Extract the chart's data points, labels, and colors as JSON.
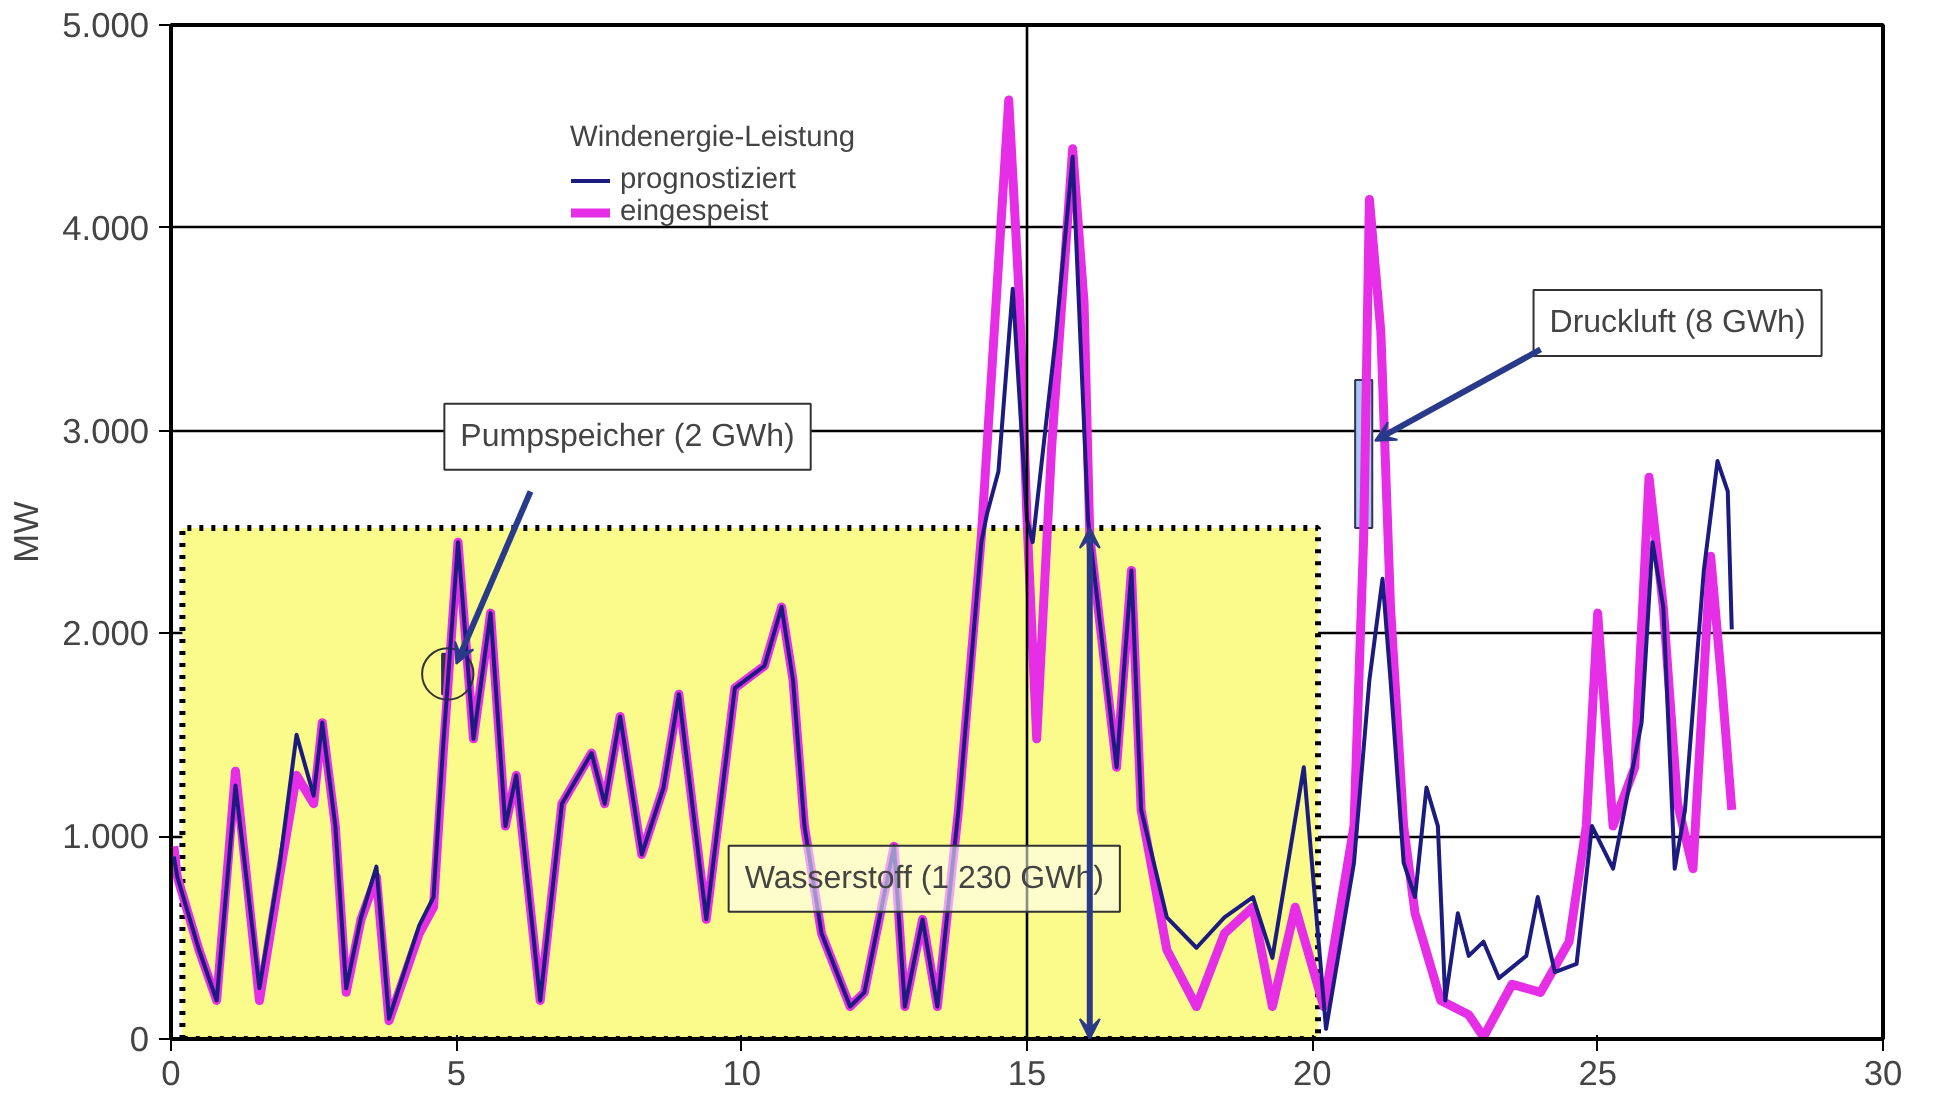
{
  "chart_data": {
    "type": "line",
    "ylabel": "MW",
    "legend_title": "Windenergie-Leistung",
    "legend": "top left",
    "grid": "y",
    "xlim": [
      0,
      30
    ],
    "ylim": [
      0,
      5000
    ],
    "xticks": [
      0,
      5,
      10,
      15,
      20,
      25,
      30
    ],
    "yticks": [
      0,
      {
        "value": 1000,
        "label": "1.000"
      },
      {
        "value": 2000,
        "label": "2.000"
      },
      {
        "value": 3000,
        "label": "3.000"
      },
      {
        "value": 4000,
        "label": "4.000"
      },
      {
        "value": 5000,
        "label": "5.000"
      }
    ],
    "ref_lines": [
      {
        "axis": "x",
        "value": 15,
        "color": "#000000",
        "line_style": "solid"
      }
    ],
    "series": [
      {
        "type": "area",
        "color": "#fbfb8c",
        "line_style": "dotted",
        "x": [
          0.2,
          20.1
        ],
        "values": [
          2520,
          2520
        ]
      },
      {
        "type": "bar",
        "color": "#a8c8f0",
        "x": [
          20.9
        ],
        "values": [
          730
        ],
        "base": [
          2520
        ]
      },
      {
        "type": "bar",
        "color": "#333333",
        "x": [
          4.82
        ],
        "values": [
          200
        ],
        "base": [
          1700
        ]
      },
      {
        "name": "prognostiziert",
        "color": "#1c1c80",
        "x": [
          0.05,
          0.11,
          0.49,
          0.8,
          1.13,
          1.55,
          1.9,
          2.2,
          2.5,
          2.65,
          2.88,
          3.07,
          3.33,
          3.6,
          3.82,
          4.35,
          4.6,
          4.77,
          5.03,
          5.3,
          5.6,
          5.86,
          6.05,
          6.47,
          6.85,
          7.37,
          7.6,
          7.87,
          8.25,
          8.63,
          8.9,
          9.38,
          9.88,
          10.4,
          10.7,
          10.9,
          11.1,
          11.4,
          11.9,
          12.15,
          12.67,
          12.86,
          13.17,
          13.43,
          13.8,
          14.2,
          14.3,
          14.5,
          14.75,
          15.0,
          15.1,
          15.5,
          15.8,
          16.07,
          16.57,
          16.83,
          17.0,
          17.45,
          17.97,
          18.46,
          18.96,
          19.3,
          19.85,
          20.24,
          20.73,
          21.0,
          21.23,
          21.37,
          21.6,
          21.8,
          22.0,
          22.2,
          22.33,
          22.55,
          22.74,
          23.0,
          23.27,
          23.75,
          23.95,
          24.25,
          24.63,
          24.9,
          25.27,
          25.77,
          25.96,
          26.15,
          26.35,
          26.53,
          26.86,
          27.1,
          27.28,
          27.35
        ],
        "values": [
          900,
          800,
          440,
          190,
          1250,
          250,
          850,
          1500,
          1200,
          1560,
          1050,
          250,
          600,
          850,
          100,
          560,
          700,
          1450,
          2450,
          1480,
          2100,
          1050,
          1300,
          190,
          1160,
          1410,
          1160,
          1590,
          910,
          1240,
          1700,
          590,
          1730,
          1840,
          2130,
          1770,
          1050,
          520,
          160,
          230,
          950,
          160,
          590,
          160,
          1130,
          2450,
          2590,
          2800,
          3700,
          2560,
          2450,
          3450,
          4350,
          2560,
          1340,
          2310,
          1130,
          600,
          450,
          600,
          700,
          400,
          1340,
          50,
          870,
          1770,
          2270,
          1770,
          870,
          700,
          1240,
          1050,
          190,
          620,
          410,
          480,
          300,
          410,
          700,
          330,
          370,
          1050,
          840,
          1560,
          2450,
          2130,
          840,
          1130,
          2310,
          2850,
          2700,
          2020
        ]
      },
      {
        "name": "eingespeist",
        "color": "#e62ee6",
        "x": [
          0.05,
          0.11,
          0.49,
          0.8,
          1.13,
          1.55,
          1.9,
          2.2,
          2.5,
          2.65,
          2.88,
          3.07,
          3.33,
          3.6,
          3.82,
          4.35,
          4.6,
          4.77,
          5.03,
          5.3,
          5.6,
          5.86,
          6.05,
          6.47,
          6.85,
          7.37,
          7.6,
          7.87,
          8.25,
          8.63,
          8.9,
          9.38,
          9.88,
          10.4,
          10.7,
          10.9,
          11.1,
          11.4,
          11.9,
          12.15,
          12.67,
          12.86,
          13.17,
          13.43,
          13.8,
          14.2,
          14.38,
          14.68,
          14.87,
          15.0,
          15.17,
          15.43,
          15.8,
          16.0,
          16.1,
          16.57,
          16.83,
          17.0,
          17.45,
          17.97,
          18.46,
          18.96,
          19.3,
          19.7,
          20.2,
          20.73,
          20.9,
          21.0,
          21.2,
          21.37,
          21.6,
          21.8,
          22.25,
          22.74,
          23.0,
          23.5,
          24.0,
          24.5,
          24.8,
          25.0,
          25.27,
          25.65,
          25.9,
          26.15,
          26.4,
          26.67,
          26.98,
          27.17,
          27.35
        ],
        "values": [
          950,
          800,
          440,
          190,
          1320,
          190,
          800,
          1300,
          1160,
          1560,
          1050,
          230,
          590,
          800,
          90,
          520,
          650,
          1410,
          2450,
          1480,
          2100,
          1050,
          1300,
          190,
          1160,
          1410,
          1160,
          1590,
          910,
          1240,
          1700,
          590,
          1730,
          1840,
          2130,
          1770,
          1050,
          520,
          160,
          230,
          950,
          160,
          590,
          160,
          1130,
          2480,
          3280,
          4630,
          3630,
          2560,
          1480,
          2910,
          4390,
          3630,
          2480,
          1340,
          2310,
          1130,
          440,
          160,
          520,
          650,
          160,
          650,
          160,
          1050,
          2480,
          4140,
          3490,
          2130,
          1050,
          620,
          190,
          120,
          10,
          270,
          230,
          480,
          1050,
          2100,
          1050,
          1340,
          2770,
          2130,
          1160,
          840,
          2380,
          1770,
          1130
        ]
      }
    ],
    "annotations": [
      {
        "text": "Pumpspeicher (2 GWh)",
        "x": 4.85,
        "y": 1800
      },
      {
        "text": "Druckluft (8 GWh)",
        "x": 21.1,
        "y": 2950
      },
      "Wasserstoff (1 230 GWh)"
    ]
  }
}
